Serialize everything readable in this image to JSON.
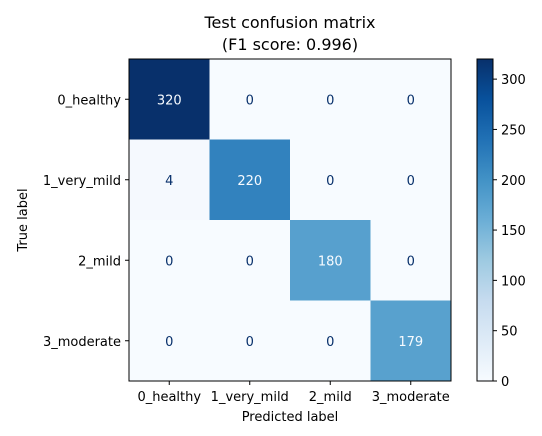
{
  "chart_data": {
    "type": "heatmap",
    "title_line1": "Test confusion matrix",
    "title_line2": "(F1 score: 0.996)",
    "xlabel": "Predicted label",
    "ylabel": "True label",
    "x_categories": [
      "0_healthy",
      "1_very_mild",
      "2_mild",
      "3_moderate"
    ],
    "y_categories": [
      "0_healthy",
      "1_very_mild",
      "2_mild",
      "3_moderate"
    ],
    "matrix": [
      [
        320,
        0,
        0,
        0
      ],
      [
        4,
        220,
        0,
        0
      ],
      [
        0,
        0,
        180,
        0
      ],
      [
        0,
        0,
        0,
        179
      ]
    ],
    "colorbar": {
      "min": 0,
      "max": 320,
      "ticks": [
        0,
        50,
        100,
        150,
        200,
        250,
        300
      ]
    },
    "colormap": "Blues",
    "colors": {
      "low": "#f7fbff",
      "high": "#08306b",
      "text_light": "#f7fbff",
      "text_dark": "#08306b"
    }
  }
}
